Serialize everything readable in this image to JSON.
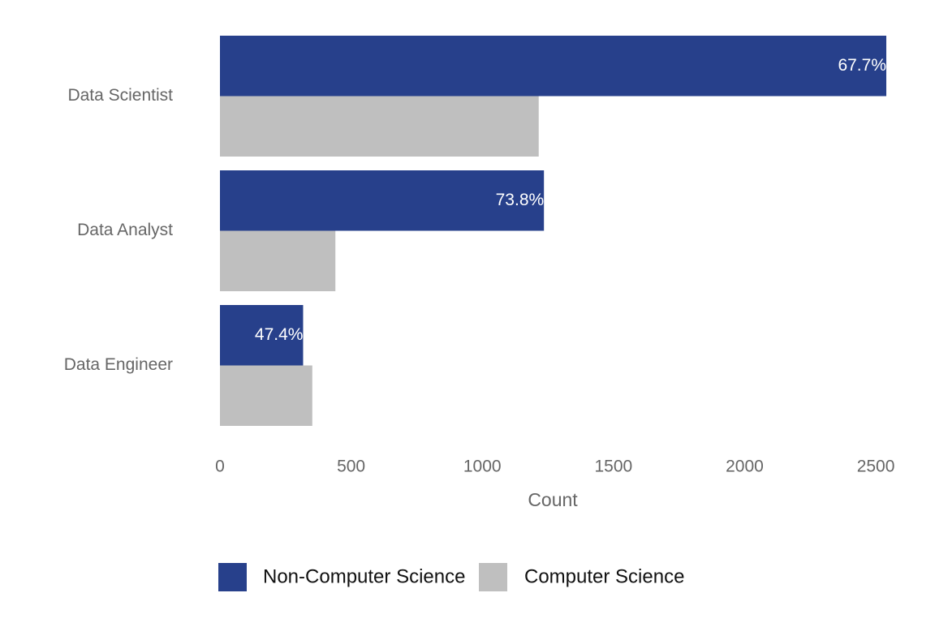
{
  "chart_data": {
    "type": "bar",
    "orientation": "horizontal",
    "categories": [
      "Data Scientist",
      "Data Analyst",
      "Data Engineer"
    ],
    "series": [
      {
        "name": "Non-Computer Science",
        "color": "#27408b",
        "values": [
          2540,
          1235,
          317
        ],
        "labels": [
          "67.7%",
          "73.8%",
          "47.4%"
        ]
      },
      {
        "name": "Computer Science",
        "color": "#bfbfbf",
        "values": [
          1215,
          440,
          352
        ]
      }
    ],
    "xlabel": "Count",
    "ylabel": "",
    "xlim": [
      0,
      2540
    ],
    "xticks": [
      0,
      500,
      1000,
      1500,
      2000,
      2500
    ],
    "grid": false,
    "legend_position": "bottom"
  }
}
